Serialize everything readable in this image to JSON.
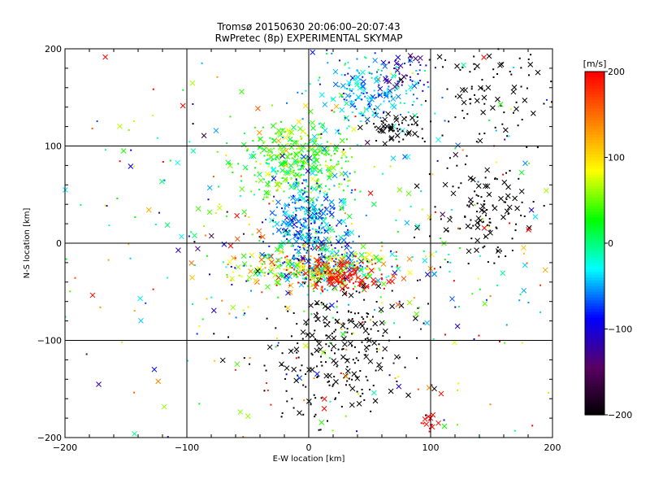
{
  "chart_data": {
    "type": "scatter",
    "title": "Tromsø 20150630 20:06:00–20:07:43",
    "subtitle": "RwPretec (8p) EXPERIMENTAL SKYMAP",
    "xlabel": "E-W location [km]",
    "ylabel": "N-S location [km]",
    "xlim": [
      -200,
      200
    ],
    "ylim": [
      -200,
      200
    ],
    "xticks": [
      "−200",
      "−100",
      "0",
      "100",
      "200"
    ],
    "yticks": [
      "−200",
      "−100",
      "0",
      "100",
      "200"
    ],
    "grid": true,
    "marker_types": [
      "cross",
      "dot"
    ],
    "colorbar": {
      "label": "[m/s]",
      "min": -200,
      "max": 200,
      "ticks": [
        "200",
        "100",
        "0",
        "−100",
        "−200"
      ],
      "colormap": [
        "#000000",
        "#5a0064",
        "#0000ff",
        "#00ffff",
        "#00ff00",
        "#ffff00",
        "#ff8000",
        "#ff0000"
      ]
    },
    "clusters": [
      {
        "name": "north-cyan",
        "cx": 50,
        "cy": 160,
        "sx": 25,
        "sy": 22,
        "n": 220,
        "vmean": -40,
        "vsd": 30
      },
      {
        "name": "north-blue",
        "cx": 80,
        "cy": 180,
        "sx": 10,
        "sy": 10,
        "n": 40,
        "vmean": -120,
        "vsd": 20
      },
      {
        "name": "north-black",
        "cx": 70,
        "cy": 120,
        "sx": 12,
        "sy": 8,
        "n": 60,
        "vmean": -200,
        "vsd": 5
      },
      {
        "name": "green-band",
        "cx": -10,
        "cy": 85,
        "sx": 25,
        "sy": 20,
        "n": 350,
        "vmean": 40,
        "vsd": 30
      },
      {
        "name": "center-cyan",
        "cx": 0,
        "cy": 20,
        "sx": 15,
        "sy": 25,
        "n": 400,
        "vmean": -50,
        "vsd": 35
      },
      {
        "name": "center-mixed",
        "cx": 10,
        "cy": -25,
        "sx": 35,
        "sy": 10,
        "n": 420,
        "vmean": 60,
        "vsd": 90
      },
      {
        "name": "south-red",
        "cx": 30,
        "cy": -35,
        "sx": 15,
        "sy": 8,
        "n": 120,
        "vmean": 200,
        "vsd": 10
      },
      {
        "name": "south-black",
        "cx": 25,
        "cy": -110,
        "sx": 30,
        "sy": 35,
        "n": 260,
        "vmean": -200,
        "vsd": 5
      },
      {
        "name": "east-black",
        "cx": 140,
        "cy": 30,
        "sx": 25,
        "sy": 25,
        "n": 120,
        "vmean": -200,
        "vsd": 5
      },
      {
        "name": "ne-black",
        "cx": 150,
        "cy": 160,
        "sx": 25,
        "sy": 30,
        "n": 100,
        "vmean": -200,
        "vsd": 5
      },
      {
        "name": "scatter-wide",
        "cx": 0,
        "cy": 0,
        "sx": 120,
        "sy": 110,
        "n": 500,
        "vmean": 30,
        "vsd": 110
      },
      {
        "name": "se-red",
        "cx": 100,
        "cy": -185,
        "sx": 4,
        "sy": 6,
        "n": 15,
        "vmean": 200,
        "vsd": 5
      }
    ]
  }
}
